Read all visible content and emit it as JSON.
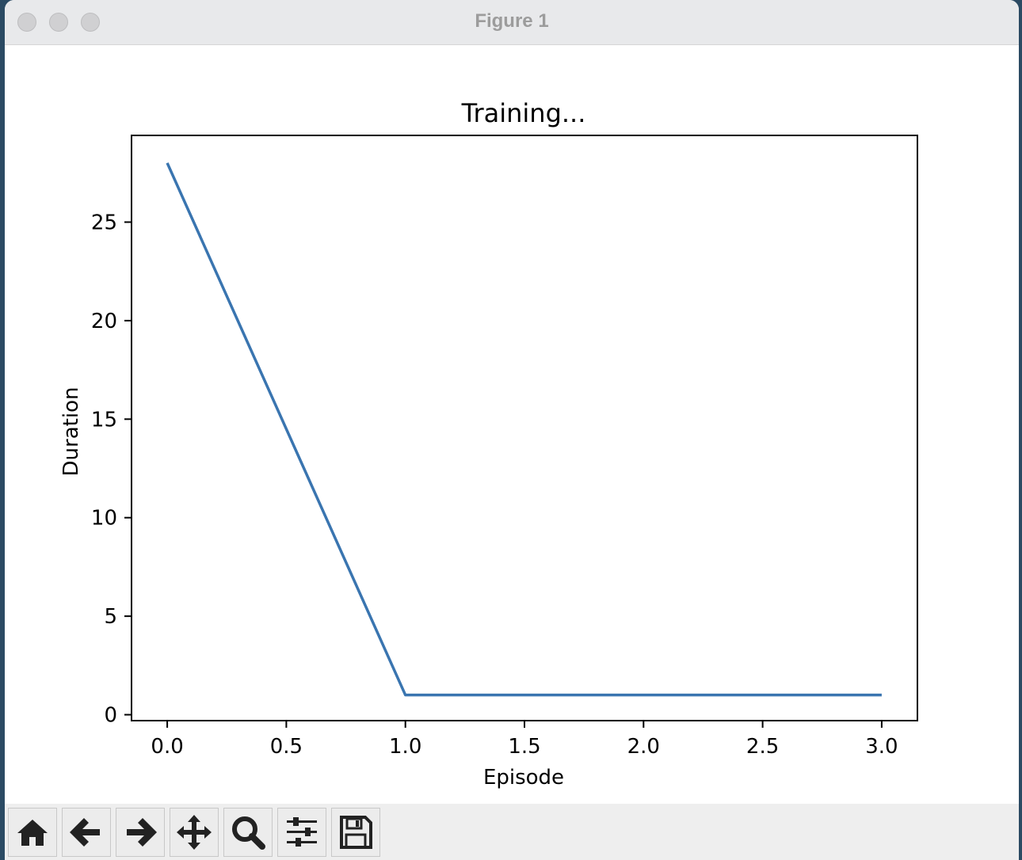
{
  "window": {
    "title": "Figure 1"
  },
  "toolbar": {
    "buttons": [
      {
        "name": "home",
        "icon": "home-icon"
      },
      {
        "name": "back",
        "icon": "arrow-left-icon"
      },
      {
        "name": "forward",
        "icon": "arrow-right-icon"
      },
      {
        "name": "pan",
        "icon": "move-icon"
      },
      {
        "name": "zoom",
        "icon": "magnifier-icon"
      },
      {
        "name": "configure-subplots",
        "icon": "sliders-icon"
      },
      {
        "name": "save",
        "icon": "floppy-disk-icon"
      }
    ]
  },
  "chart_data": {
    "type": "line",
    "title": "Training...",
    "xlabel": "Episode",
    "ylabel": "Duration",
    "xlim": [
      -0.15,
      3.15
    ],
    "ylim": [
      -0.3,
      29.4
    ],
    "xticks": [
      0.0,
      0.5,
      1.0,
      1.5,
      2.0,
      2.5,
      3.0
    ],
    "xtick_labels": [
      "0.0",
      "0.5",
      "1.0",
      "1.5",
      "2.0",
      "2.5",
      "3.0"
    ],
    "yticks": [
      0,
      5,
      10,
      15,
      20,
      25
    ],
    "ytick_labels": [
      "0",
      "5",
      "10",
      "15",
      "20",
      "25"
    ],
    "grid": false,
    "series": [
      {
        "x": [
          0,
          1,
          2,
          3
        ],
        "y": [
          28,
          1,
          1,
          1
        ],
        "color": "#3a75b0"
      }
    ]
  }
}
